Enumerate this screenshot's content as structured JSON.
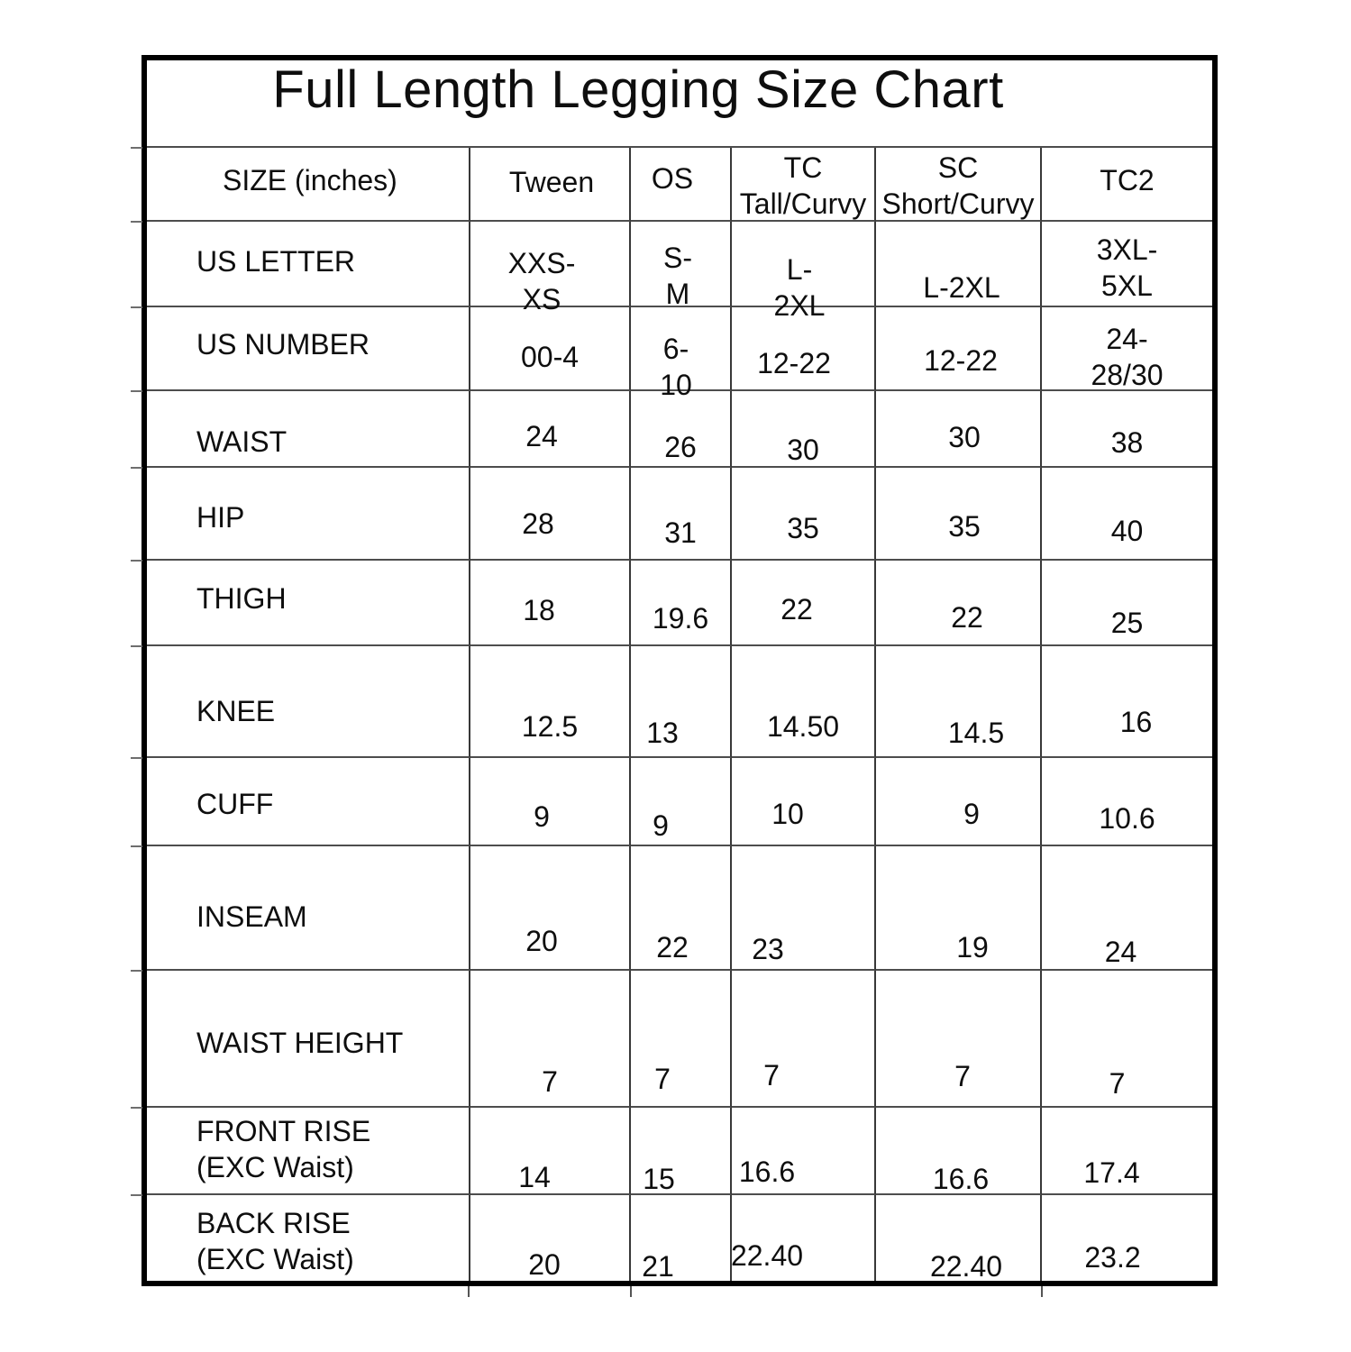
{
  "title": "Full Length Legging Size Chart",
  "table": {
    "columns": [
      "SIZE (inches)",
      "Tween",
      "OS",
      "TC\nTall/Curvy",
      "SC\nShort/Curvy",
      "TC2"
    ],
    "rows": [
      {
        "label": "US LETTER",
        "values": [
          "XXS-XS",
          "S-M",
          "L-2XL",
          "L-2XL",
          "3XL-5XL"
        ]
      },
      {
        "label": "US NUMBER",
        "values": [
          "00-4",
          "6-10",
          "12-22",
          "12-22",
          "24-28/30"
        ]
      },
      {
        "label": "WAIST",
        "values": [
          "24",
          "26",
          "30",
          "30",
          "38"
        ]
      },
      {
        "label": "HIP",
        "values": [
          "28",
          "31",
          "35",
          "35",
          "40"
        ]
      },
      {
        "label": "THIGH",
        "values": [
          "18",
          "19.6",
          "22",
          "22",
          "25"
        ]
      },
      {
        "label": "KNEE",
        "values": [
          "12.5",
          "13",
          "14.50",
          "14.5",
          "16"
        ]
      },
      {
        "label": "CUFF",
        "values": [
          "9",
          "9",
          "10",
          "9",
          "10.6"
        ]
      },
      {
        "label": "INSEAM",
        "values": [
          "20",
          "22",
          "23",
          "19",
          "24"
        ]
      },
      {
        "label": "WAIST HEIGHT",
        "values": [
          "7",
          "7",
          "7",
          "7",
          "7"
        ]
      },
      {
        "label": "FRONT RISE\n(EXC Waist)",
        "values": [
          "14",
          "15",
          "16.6",
          "16.6",
          "17.4"
        ]
      },
      {
        "label": "BACK RISE\n(EXC Waist)",
        "values": [
          "20",
          "21",
          "22.40",
          "22.40",
          "23.2"
        ]
      }
    ]
  },
  "chart_data": {
    "type": "table",
    "title": "Full Length Legging Size Chart",
    "unit": "inches",
    "columns": [
      "SIZE (inches)",
      "Tween",
      "OS",
      "TC Tall/Curvy",
      "SC Short/Curvy",
      "TC2"
    ],
    "rows": [
      [
        "US LETTER",
        "XXS-XS",
        "S-M",
        "L-2XL",
        "L-2XL",
        "3XL-5XL"
      ],
      [
        "US NUMBER",
        "00-4",
        "6-10",
        "12-22",
        "12-22",
        "24-28/30"
      ],
      [
        "WAIST",
        24,
        26,
        30,
        30,
        38
      ],
      [
        "HIP",
        28,
        31,
        35,
        35,
        40
      ],
      [
        "THIGH",
        18,
        19.6,
        22,
        22,
        25
      ],
      [
        "KNEE",
        12.5,
        13,
        14.5,
        14.5,
        16
      ],
      [
        "CUFF",
        9,
        9,
        10,
        9,
        10.6
      ],
      [
        "INSEAM",
        20,
        22,
        23,
        19,
        24
      ],
      [
        "WAIST HEIGHT",
        7,
        7,
        7,
        7,
        7
      ],
      [
        "FRONT RISE (EXC Waist)",
        14,
        15,
        16.6,
        16.6,
        17.4
      ],
      [
        "BACK RISE (EXC Waist)",
        20,
        21,
        22.4,
        22.4,
        23.2
      ]
    ],
    "colors": {
      "text": "#0e0e0e",
      "border": "#000000",
      "gridline": "#4d4d4d",
      "background": "#ffffff"
    }
  }
}
